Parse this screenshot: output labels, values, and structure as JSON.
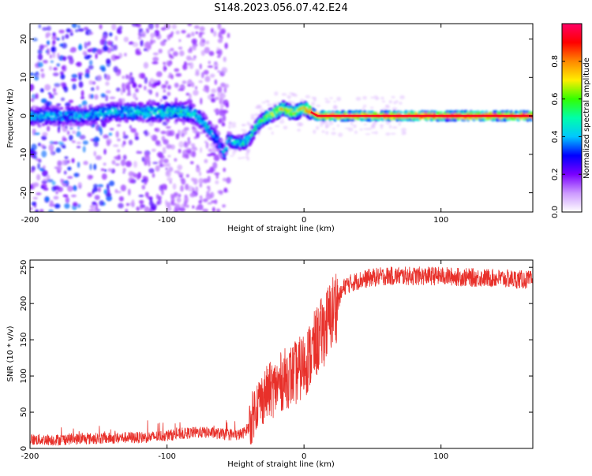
{
  "title": "S148.2023.056.07.42.E24",
  "chart_data": [
    {
      "type": "heatmap",
      "xlabel": "Height of straight line (km)",
      "ylabel": "Frequency (Hz)",
      "xlim": [
        -200,
        167
      ],
      "ylim": [
        -25,
        24
      ],
      "x_ticks": [
        -200,
        -100,
        0,
        100
      ],
      "y_ticks": [
        -20,
        -10,
        0,
        10,
        20
      ],
      "grid": false,
      "colorbar": {
        "label": "Normalized spectral amplitude",
        "range": [
          0,
          1
        ],
        "ticks": [
          "0.0",
          "0.2",
          "0.4",
          "0.6",
          "0.8"
        ],
        "colormap": [
          "#ffffff",
          "#cc99ff",
          "#7a00ff",
          "#0000ff",
          "#00c8ff",
          "#00ffaa",
          "#33ff00",
          "#ffee00",
          "#ff8800",
          "#ff0000",
          "#ff0066"
        ]
      },
      "ridge": {
        "x": [
          -200,
          -180,
          -160,
          -140,
          -120,
          -100,
          -85,
          -78,
          -70,
          -62,
          -58,
          -55,
          -50,
          -45,
          -40,
          -35,
          -30,
          -25,
          -20,
          -15,
          -10,
          -5,
          0,
          5,
          10,
          20,
          40,
          70,
          100,
          130,
          167
        ],
        "frequency": [
          0,
          0,
          0,
          1,
          1,
          1,
          1,
          0,
          -3,
          -7,
          -10,
          -6,
          -7,
          -7,
          -6,
          -3,
          -1,
          0,
          1,
          2,
          1,
          1,
          2,
          1,
          0,
          0,
          0,
          0,
          0,
          0,
          0
        ],
        "amplitude": [
          0.45,
          0.45,
          0.45,
          0.5,
          0.5,
          0.5,
          0.55,
          0.45,
          0.45,
          0.4,
          0.45,
          0.55,
          0.5,
          0.6,
          0.55,
          0.55,
          0.6,
          0.7,
          0.7,
          0.75,
          0.75,
          0.75,
          0.75,
          0.9,
          0.9,
          0.9,
          0.9,
          0.95,
          0.95,
          0.95,
          0.95
        ]
      }
    },
    {
      "type": "line",
      "xlabel": "Height of straight line (km)",
      "ylabel": "SNR (10 * v/v)",
      "xlim": [
        -200,
        167
      ],
      "ylim": [
        0,
        260
      ],
      "x_ticks": [
        -200,
        -100,
        0,
        100
      ],
      "y_ticks": [
        0,
        50,
        100,
        150,
        200,
        250
      ],
      "grid": false,
      "series": [
        {
          "color": "#e8302a",
          "x": [
            -200,
            -190,
            -180,
            -170,
            -160,
            -150,
            -140,
            -130,
            -120,
            -110,
            -100,
            -90,
            -80,
            -70,
            -60,
            -50,
            -45,
            -40,
            -35,
            -30,
            -25,
            -20,
            -15,
            -10,
            -5,
            0,
            5,
            10,
            15,
            20,
            25,
            30,
            40,
            50,
            60,
            80,
            100,
            120,
            140,
            160,
            167
          ],
          "y": [
            12,
            12,
            12,
            13,
            13,
            14,
            14,
            15,
            15,
            16,
            18,
            20,
            22,
            22,
            20,
            18,
            20,
            30,
            60,
            70,
            80,
            85,
            95,
            100,
            105,
            115,
            130,
            150,
            165,
            185,
            205,
            225,
            232,
            236,
            238,
            238,
            238,
            236,
            235,
            233,
            232
          ]
        }
      ]
    }
  ]
}
